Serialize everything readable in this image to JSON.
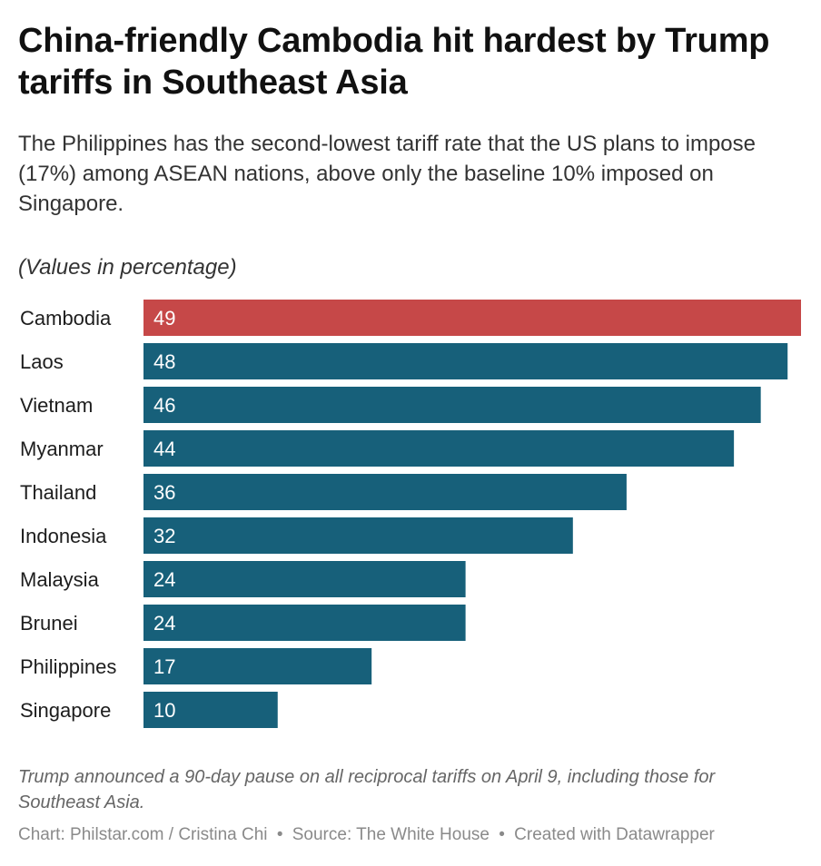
{
  "header": {
    "title": "China-friendly Cambodia hit hardest by Trump tariffs in Southeast Asia",
    "subtitle": "The Philippines has the second-lowest tariff rate that the US plans to impose (17%) among ASEAN nations, above only the baseline 10% imposed on Singapore.",
    "note": "(Values in percentage)"
  },
  "chart_data": {
    "type": "bar",
    "orientation": "horizontal",
    "categories": [
      "Cambodia",
      "Laos",
      "Vietnam",
      "Myanmar",
      "Thailand",
      "Indonesia",
      "Malaysia",
      "Brunei",
      "Philippines",
      "Singapore"
    ],
    "values": [
      49,
      48,
      46,
      44,
      36,
      32,
      24,
      24,
      17,
      10
    ],
    "highlight": "Cambodia",
    "colors": {
      "default": "#17607a",
      "highlight": "#c64848",
      "value_label": "#ffffff",
      "category_label": "#1d1d1d"
    },
    "xlim": [
      0,
      49
    ],
    "grid": false,
    "legend": "none"
  },
  "footer": {
    "footnote": "Trump announced a 90-day pause on all reciprocal tariffs on April 9, including those for Southeast Asia.",
    "chart_credit": "Chart: Philstar.com / Cristina Chi",
    "source": "Source: The White House",
    "created_with": "Created with Datawrapper",
    "separator": "•"
  }
}
